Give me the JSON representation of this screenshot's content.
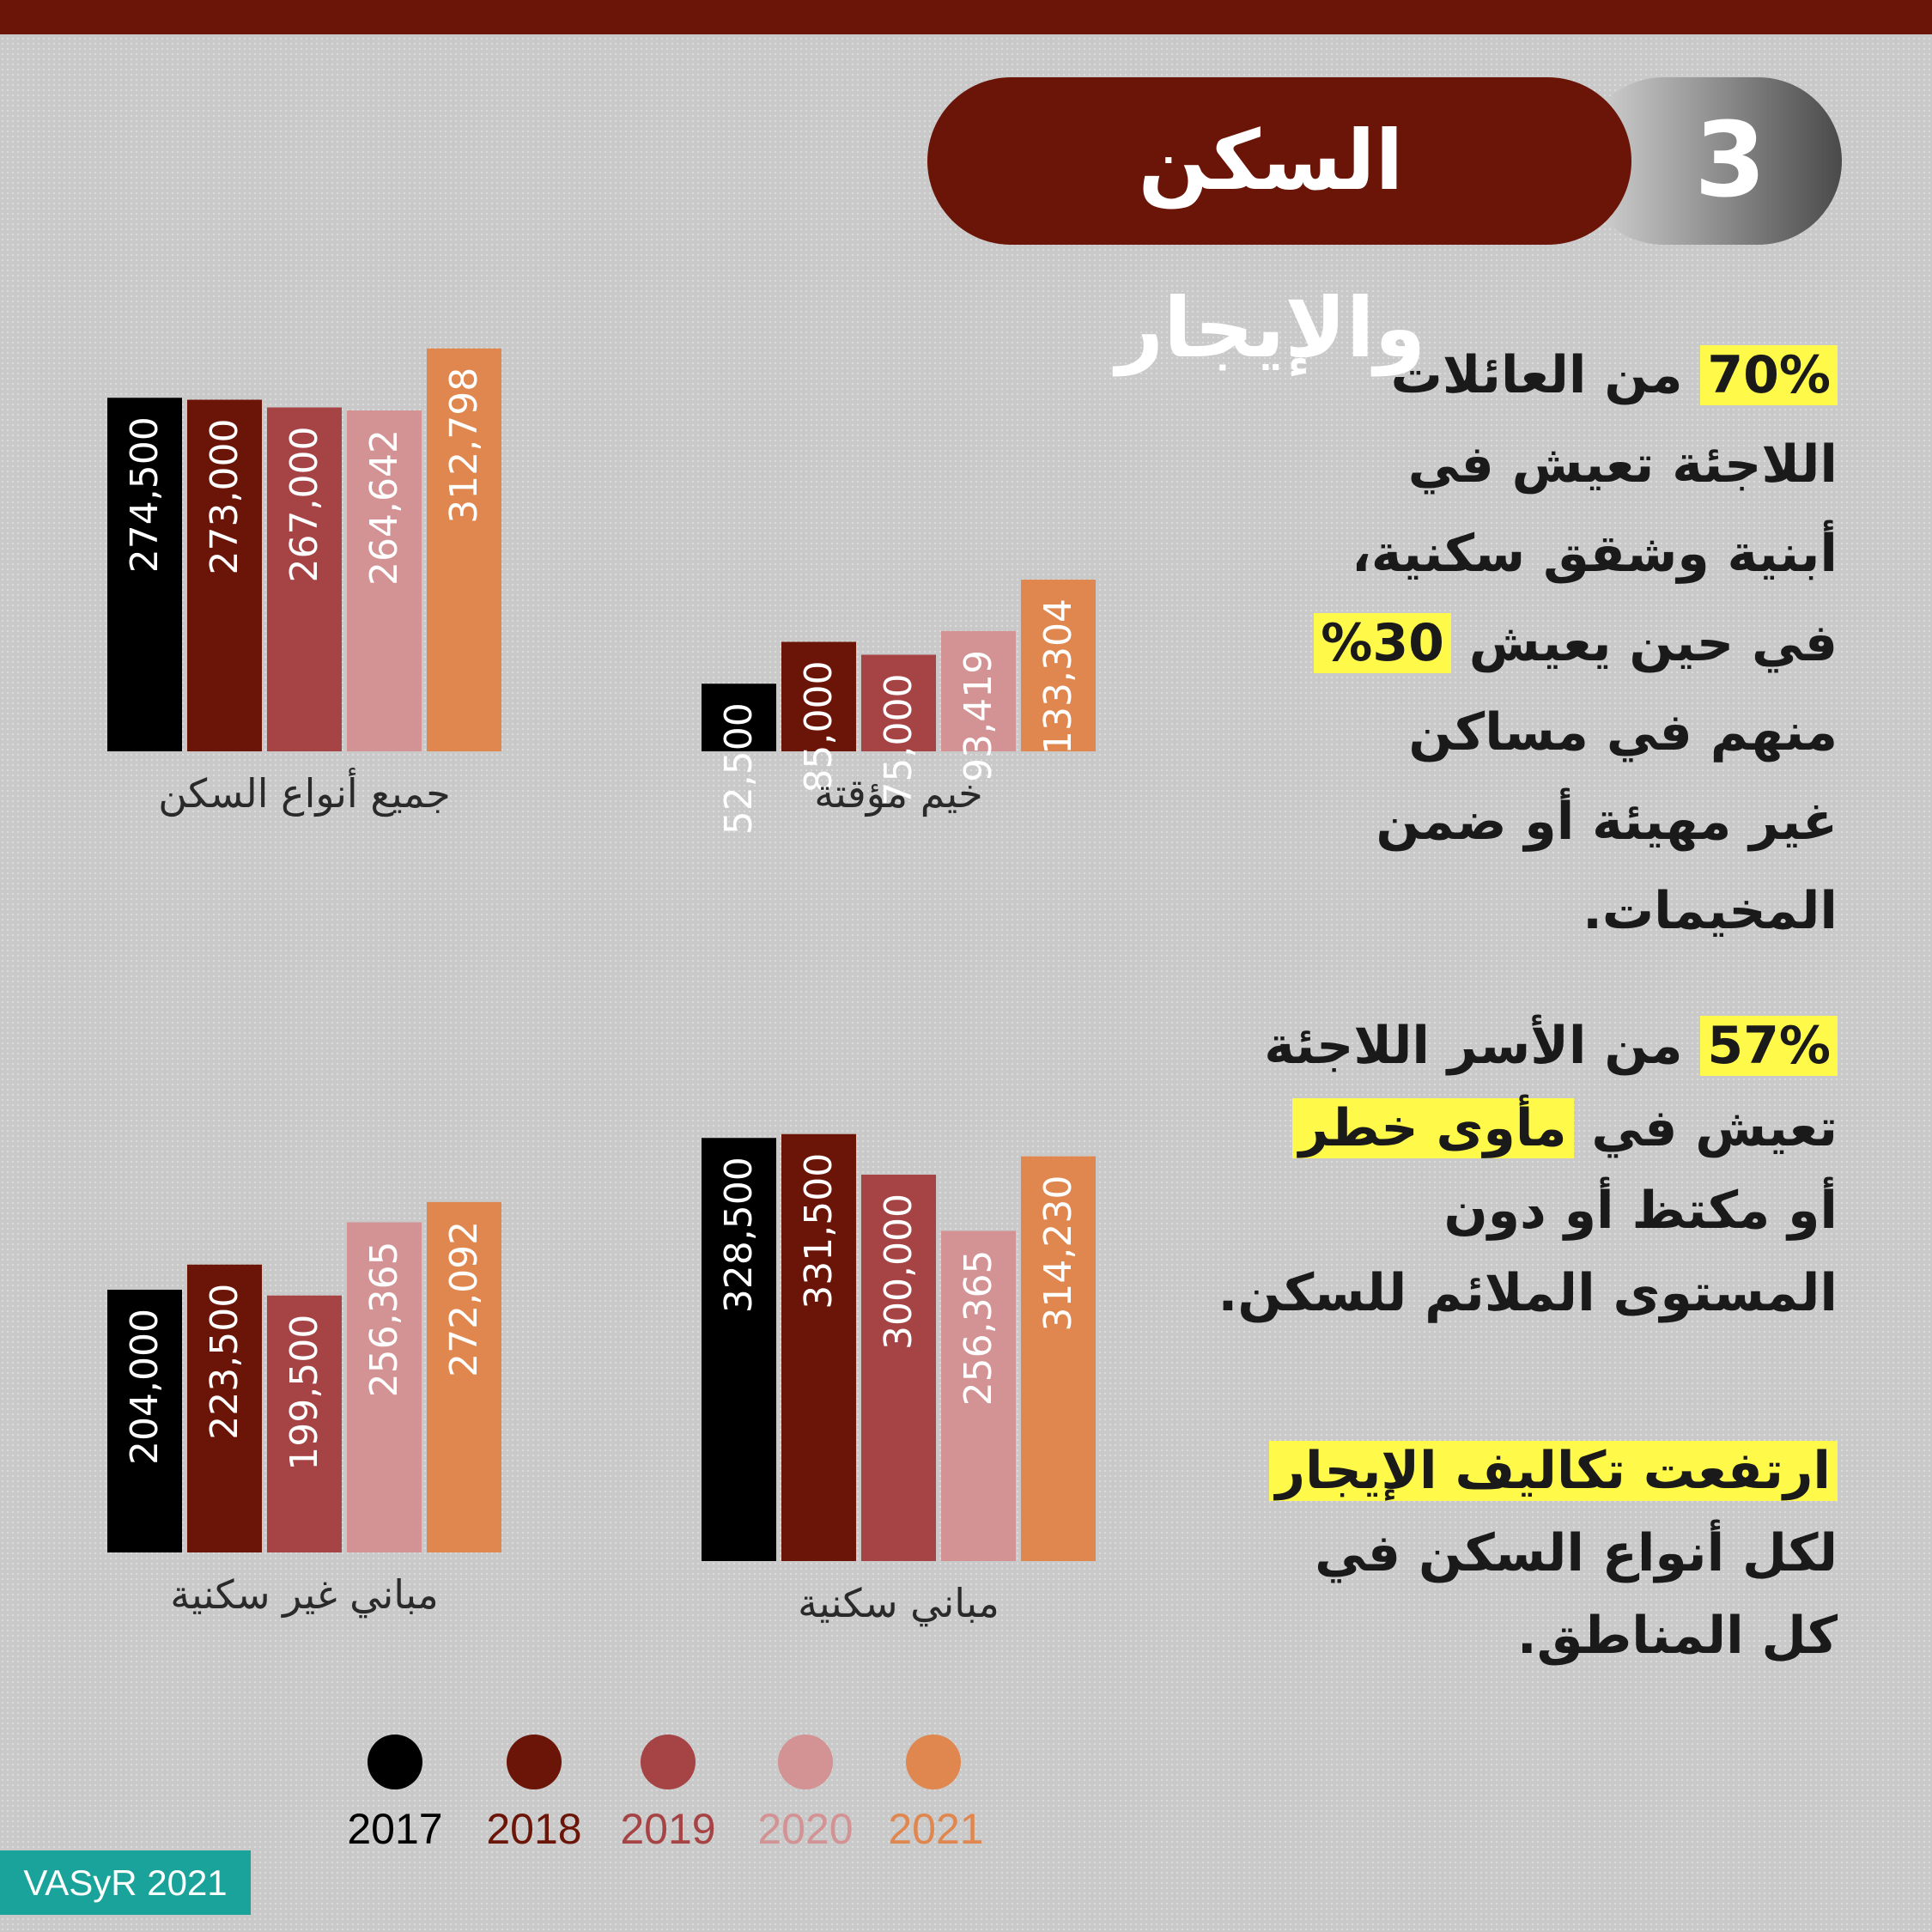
{
  "header": {
    "number": "3",
    "title": "السكن والإيجار"
  },
  "colors": {
    "2017": "#000000",
    "2018": "#6b1508",
    "2019": "#a64345",
    "2020": "#d39293",
    "2021": "#e0874f"
  },
  "chart_data": [
    {
      "type": "bar",
      "xlabel": "جميع أنواع السكن",
      "categories": [
        "2017",
        "2018",
        "2019",
        "2020",
        "2021"
      ],
      "values": [
        274500,
        273000,
        267000,
        264642,
        312798
      ],
      "value_labels": [
        "274,500",
        "273,000",
        "267,000",
        "264,642",
        "312,798"
      ],
      "grid": false
    },
    {
      "type": "bar",
      "xlabel": "خيم مؤقتة",
      "categories": [
        "2017",
        "2018",
        "2019",
        "2020",
        "2021"
      ],
      "values": [
        52500,
        85000,
        75000,
        93419,
        133304
      ],
      "value_labels": [
        "52,500",
        "85,000",
        "75,000",
        "93,419",
        "133,304"
      ],
      "grid": false
    },
    {
      "type": "bar",
      "xlabel": "مباني غير سكنية",
      "categories": [
        "2017",
        "2018",
        "2019",
        "2020",
        "2021"
      ],
      "values": [
        204000,
        223500,
        199500,
        256365,
        272092
      ],
      "value_labels": [
        "204,000",
        "223,500",
        "199,500",
        "256,365",
        "272,092"
      ],
      "grid": false
    },
    {
      "type": "bar",
      "xlabel": "مباني سكنية",
      "categories": [
        "2017",
        "2018",
        "2019",
        "2020",
        "2021"
      ],
      "values": [
        328500,
        331500,
        300000,
        256365,
        314230
      ],
      "value_labels": [
        "328,500",
        "331,500",
        "300,000",
        "256,365",
        "314,230"
      ],
      "grid": false
    }
  ],
  "legend": {
    "years": [
      "2017",
      "2018",
      "2019",
      "2020",
      "2021"
    ]
  },
  "text": {
    "block1": {
      "l1_hl": "70%",
      "l1": " من العائلات",
      "l2": "اللاجئة تعيش في",
      "l3": "أبنية وشقق سكنية،",
      "l4_a": "في حين يعيش ",
      "l4_hl": "30%",
      "l5": "منهم في مساكن",
      "l6": "غير مهيئة أو ضمن",
      "l7": "المخيمات."
    },
    "block2": {
      "l1_hl": "57%",
      "l1": " من الأسر اللاجئة",
      "l2_a": "تعيش في ",
      "l2_hl": "مأوى خطر",
      "l3": "أو مكتظ أو دون",
      "l4": "المستوى الملائم للسكن."
    },
    "block3": {
      "l1_hl": "ارتفعت تكاليف الإيجار",
      "l2": "لكل أنواع السكن في",
      "l3": "كل المناطق."
    }
  },
  "badge": "VASyR 2021"
}
